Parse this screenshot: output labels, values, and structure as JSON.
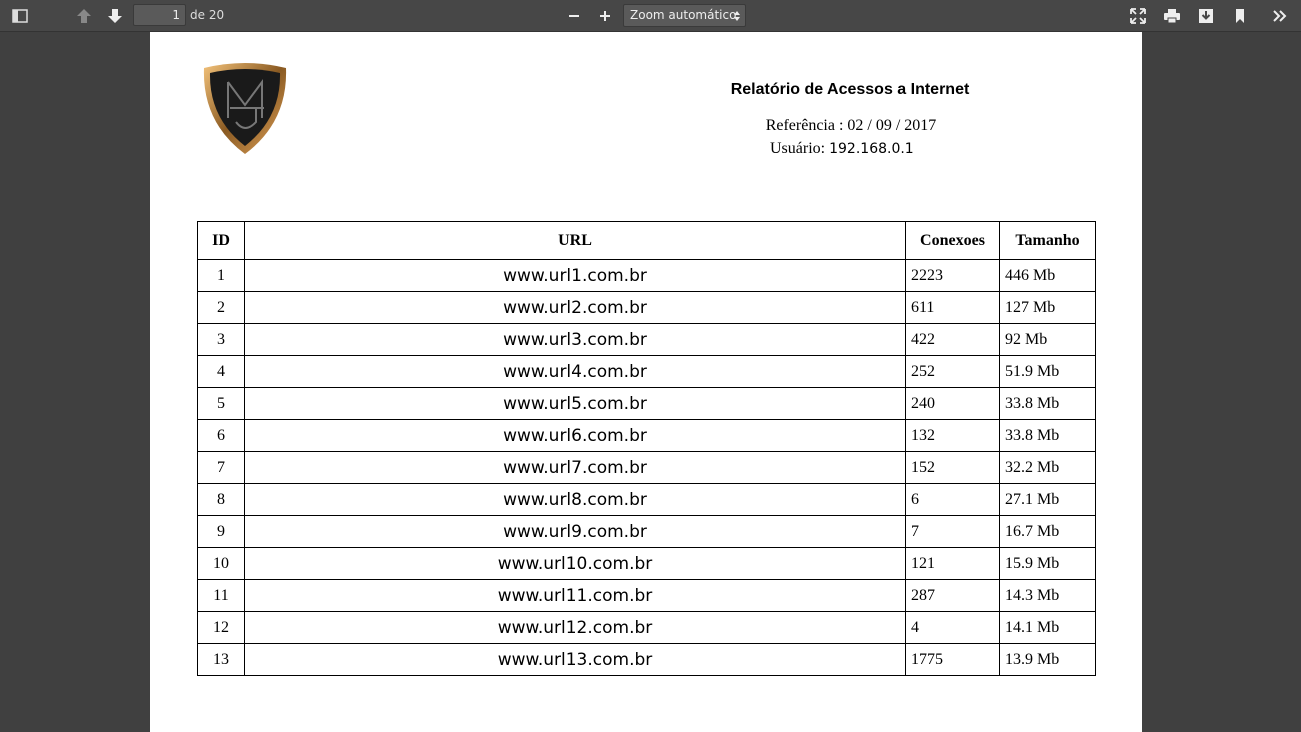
{
  "toolbar": {
    "page_number": "1",
    "page_count": "de 20",
    "zoom": "Zoom automático"
  },
  "document": {
    "title": "Relatório de Acessos a Internet",
    "reference": "Referência : 02 / 09 / 2017",
    "user_label": "Usuário:",
    "user_value": "192.168.0.1",
    "table": {
      "headers": [
        "ID",
        "URL",
        "Conexoes",
        "Tamanho"
      ],
      "rows": [
        [
          "1",
          "www.url1.com.br",
          "2223",
          "446 Mb"
        ],
        [
          "2",
          "www.url2.com.br",
          "611",
          "127 Mb"
        ],
        [
          "3",
          "www.url3.com.br",
          "422",
          "92 Mb"
        ],
        [
          "4",
          "www.url4.com.br",
          "252",
          "51.9 Mb"
        ],
        [
          "5",
          "www.url5.com.br",
          "240",
          "33.8 Mb"
        ],
        [
          "6",
          "www.url6.com.br",
          "132",
          "33.8 Mb"
        ],
        [
          "7",
          "www.url7.com.br",
          "152",
          "32.2 Mb"
        ],
        [
          "8",
          "www.url8.com.br",
          "6",
          "27.1 Mb"
        ],
        [
          "9",
          "www.url9.com.br",
          "7",
          "16.7 Mb"
        ],
        [
          "10",
          "www.url10.com.br",
          "121",
          "15.9 Mb"
        ],
        [
          "11",
          "www.url11.com.br",
          "287",
          "14.3 Mb"
        ],
        [
          "12",
          "www.url12.com.br",
          "4",
          "14.1 Mb"
        ],
        [
          "13",
          "www.url13.com.br",
          "1775",
          "13.9 Mb"
        ]
      ]
    }
  }
}
